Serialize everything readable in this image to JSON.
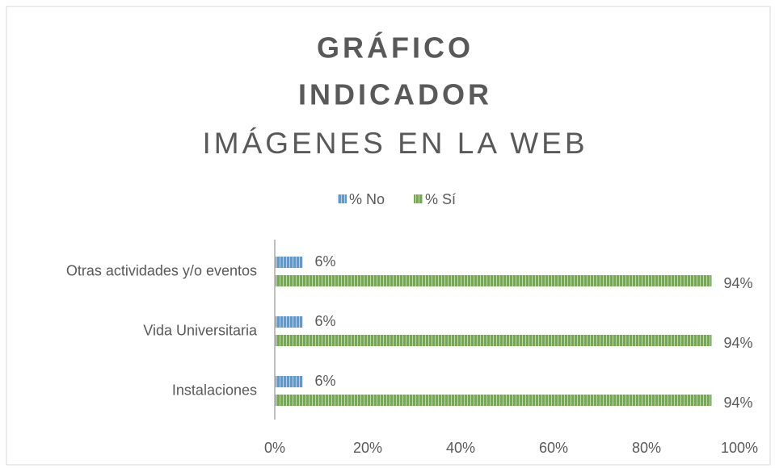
{
  "chart_data": {
    "type": "barh",
    "title": [
      "GRÁFICO",
      "INDICADOR"
    ],
    "subtitle": "IMÁGENES EN LA WEB",
    "categories": [
      "Otras actividades y/o eventos",
      "Vida Universitaria",
      "Instalaciones"
    ],
    "series": [
      {
        "name": "% No",
        "color": "#5b9bd5",
        "values": [
          6,
          6,
          6
        ],
        "value_labels": [
          "6%",
          "6%",
          "6%"
        ]
      },
      {
        "name": "% Sí",
        "color": "#70ad47",
        "values": [
          94,
          94,
          94
        ],
        "value_labels": [
          "94%",
          "94%",
          "94%"
        ]
      }
    ],
    "xlim": [
      0,
      100
    ],
    "xticks": [
      {
        "value": 0,
        "label": "0%"
      },
      {
        "value": 20,
        "label": "20%"
      },
      {
        "value": 40,
        "label": "40%"
      },
      {
        "value": 60,
        "label": "60%"
      },
      {
        "value": 80,
        "label": "80%"
      },
      {
        "value": 100,
        "label": "100%"
      }
    ],
    "grid": false,
    "legend": "top"
  }
}
